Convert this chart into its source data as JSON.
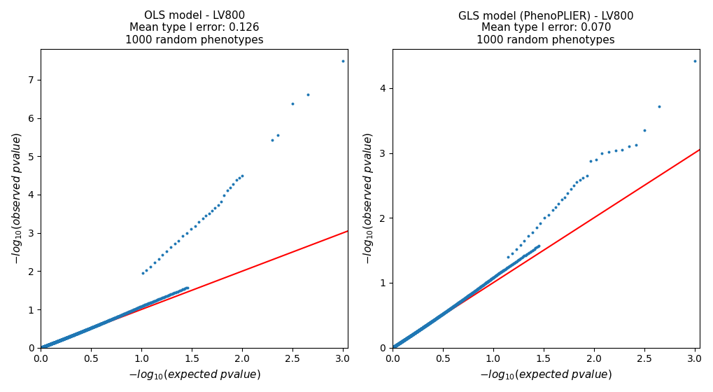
{
  "title_left": "OLS model - LV800\nMean type I error: 0.126\n1000 random phenotypes",
  "title_right": "GLS model (PhenoPLIER) - LV800\nMean type I error: 0.070\n1000 random phenotypes",
  "xlabel": "$-log_{10}(expected\\ pvalue)$",
  "ylabel": "$-log_{10}(observed\\ pvalue)$",
  "dot_color": "#1f77b4",
  "line_color": "red",
  "xlim": [
    0,
    3.05
  ],
  "ylim_left": [
    0,
    7.8
  ],
  "ylim_right": [
    0,
    4.6
  ],
  "figsize": [
    10.2,
    5.6
  ],
  "dpi": 100,
  "ols_tail_exp": [
    3.0,
    2.65,
    2.5,
    2.35,
    2.3,
    2.0,
    1.97,
    1.94,
    1.91,
    1.88,
    1.85,
    1.82,
    1.79,
    1.76,
    1.73,
    1.7,
    1.67,
    1.64,
    1.61,
    1.57,
    1.53,
    1.49,
    1.45,
    1.41,
    1.37,
    1.33,
    1.29,
    1.25,
    1.21,
    1.17,
    1.13,
    1.09,
    1.05,
    1.01
  ],
  "ols_tail_obs": [
    7.5,
    6.62,
    6.38,
    5.55,
    5.42,
    4.5,
    4.44,
    4.38,
    4.28,
    4.18,
    4.1,
    3.98,
    3.82,
    3.72,
    3.65,
    3.58,
    3.5,
    3.45,
    3.38,
    3.28,
    3.18,
    3.1,
    3.0,
    2.92,
    2.8,
    2.72,
    2.62,
    2.52,
    2.42,
    2.32,
    2.22,
    2.12,
    2.02,
    1.95
  ],
  "gls_tail_exp": [
    3.0,
    2.65,
    2.5,
    2.42,
    2.35,
    2.28,
    2.22,
    2.15,
    2.08,
    2.02,
    1.97,
    1.93,
    1.89,
    1.86,
    1.83,
    1.8,
    1.77,
    1.74,
    1.71,
    1.68,
    1.65,
    1.62,
    1.59,
    1.55,
    1.51,
    1.47,
    1.43,
    1.39,
    1.35,
    1.31,
    1.27,
    1.23,
    1.19,
    1.15
  ],
  "gls_tail_obs": [
    4.42,
    3.72,
    3.35,
    3.12,
    3.1,
    3.05,
    3.04,
    3.02,
    3.0,
    2.9,
    2.88,
    2.65,
    2.62,
    2.58,
    2.55,
    2.5,
    2.45,
    2.38,
    2.32,
    2.28,
    2.22,
    2.16,
    2.12,
    2.05,
    2.0,
    1.92,
    1.85,
    1.78,
    1.72,
    1.65,
    1.58,
    1.52,
    1.45,
    1.4
  ]
}
